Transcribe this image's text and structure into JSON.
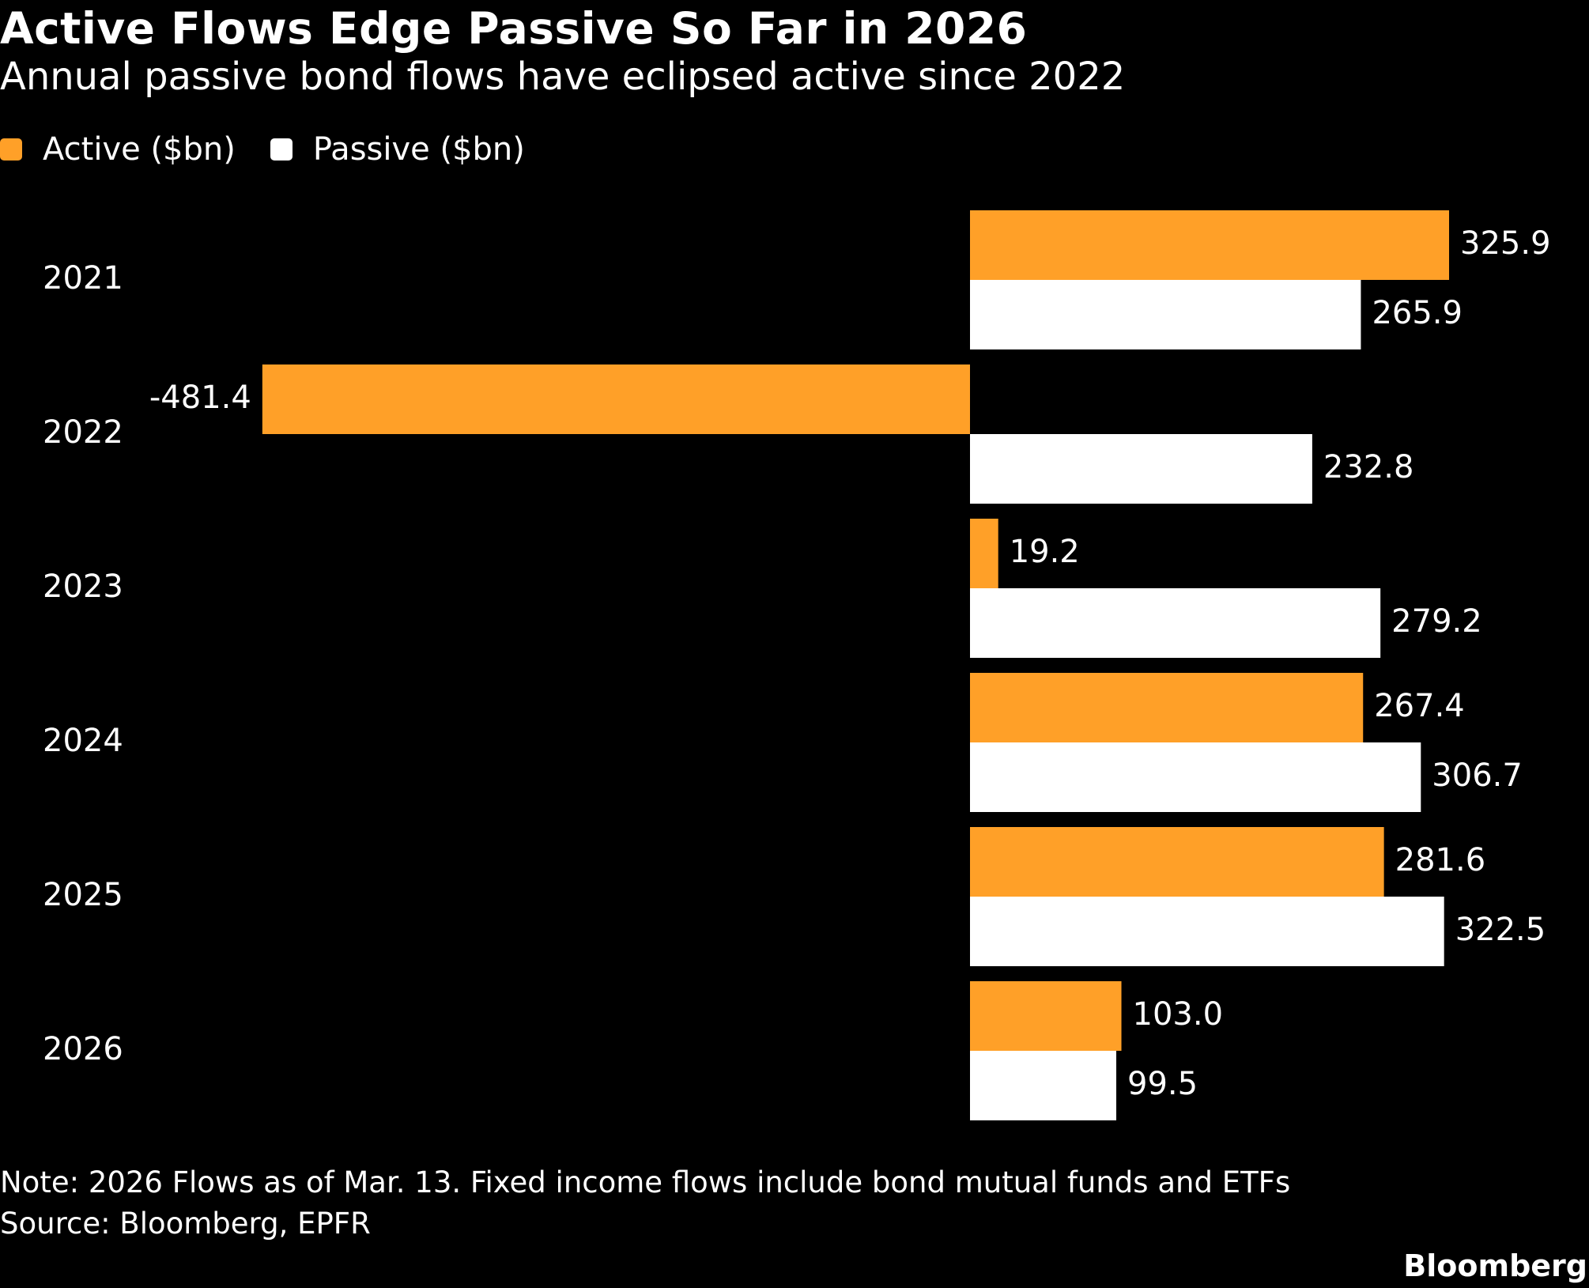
{
  "chart_data": {
    "type": "bar",
    "orientation": "horizontal",
    "title": "Active Flows Edge Passive So Far in 2026",
    "subtitle": "Annual passive bond flows have eclipsed active since 2022",
    "categories": [
      "2021",
      "2022",
      "2023",
      "2024",
      "2025",
      "2026"
    ],
    "series": [
      {
        "name": "Active ($bn)",
        "color": "#ffa028",
        "values": [
          325.9,
          -481.4,
          19.2,
          267.4,
          281.6,
          103.0
        ]
      },
      {
        "name": "Passive ($bn)",
        "color": "#ffffff",
        "values": [
          265.9,
          232.8,
          279.2,
          306.7,
          322.5,
          99.5
        ]
      }
    ],
    "data_labels": [
      [
        "325.9",
        "-481.4",
        "19.2",
        "267.4",
        "281.6",
        "103.0"
      ],
      [
        "265.9",
        "232.8",
        "279.2",
        "306.7",
        "322.5",
        "99.5"
      ]
    ],
    "xlim": [
      -650,
      430
    ],
    "grid": false,
    "legend_position": "top-left",
    "note": "Note: 2026 Flows as of Mar. 13. Fixed income flows include bond mutual funds and ETFs",
    "source": "Source: Bloomberg, EPFR",
    "brand": "Bloomberg"
  }
}
